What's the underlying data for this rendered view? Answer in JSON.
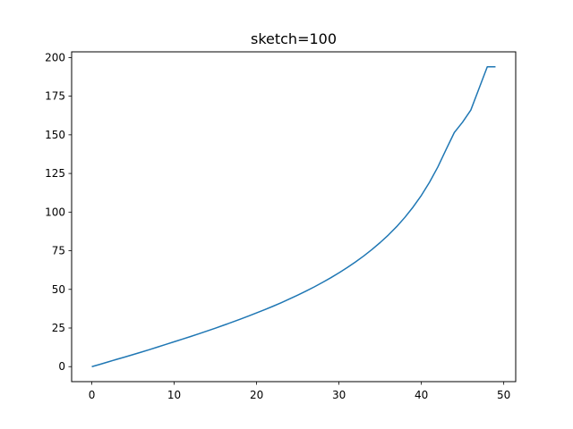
{
  "chart_data": {
    "type": "line",
    "title": "sketch=100",
    "xlabel": "",
    "ylabel": "",
    "xlim": [
      -2.45,
      51.45
    ],
    "ylim": [
      -9.7,
      203.7
    ],
    "grid": false,
    "x_ticks": [
      0,
      10,
      20,
      30,
      40,
      50
    ],
    "x_tick_labels": [
      "0",
      "10",
      "20",
      "30",
      "40",
      "50"
    ],
    "y_ticks": [
      0,
      25,
      50,
      75,
      100,
      125,
      150,
      175,
      200
    ],
    "y_tick_labels": [
      "0",
      "25",
      "50",
      "75",
      "100",
      "125",
      "150",
      "175",
      "200"
    ],
    "series": [
      {
        "color": "#1f77b4",
        "x": [
          0,
          1,
          2,
          3,
          4,
          5,
          6,
          7,
          8,
          9,
          10,
          11,
          12,
          13,
          14,
          15,
          16,
          17,
          18,
          19,
          20,
          21,
          22,
          23,
          24,
          25,
          26,
          27,
          28,
          29,
          30,
          31,
          32,
          33,
          34,
          35,
          36,
          37,
          38,
          39,
          40,
          41,
          42,
          43,
          44,
          45,
          46,
          47,
          48,
          49
        ],
        "y": [
          0,
          1.5,
          3.1,
          4.7,
          6.2,
          7.8,
          9.4,
          11.0,
          12.7,
          14.4,
          16.1,
          17.8,
          19.5,
          21.3,
          23.1,
          24.9,
          26.8,
          28.7,
          30.7,
          32.7,
          34.8,
          36.9,
          39.1,
          41.4,
          43.8,
          46.3,
          48.9,
          51.6,
          54.5,
          57.5,
          60.7,
          64.1,
          67.7,
          71.6,
          75.8,
          80.3,
          85.2,
          90.6,
          96.6,
          103.3,
          110.8,
          119.4,
          129.2,
          140.5,
          151.5,
          158.2,
          166.0,
          180.0,
          194.0,
          194.0
        ]
      }
    ]
  }
}
